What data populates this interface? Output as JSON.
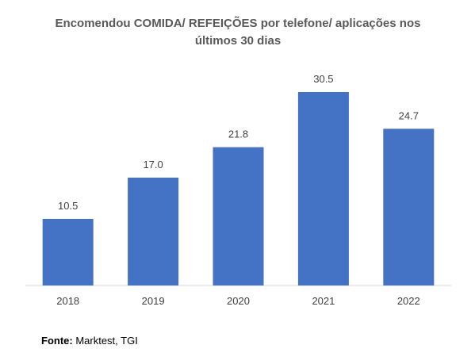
{
  "chart_data": {
    "type": "bar",
    "title_lines": [
      "Encomendou COMIDA/ REFEIÇÕES por telefone/ aplicações nos",
      "últimos 30 dias"
    ],
    "categories": [
      "2018",
      "2019",
      "2020",
      "2021",
      "2022"
    ],
    "values": [
      10.5,
      17.0,
      21.8,
      30.5,
      24.7
    ],
    "data_labels": [
      "10.5",
      "17.0",
      "21.8",
      "30.5",
      "24.7"
    ],
    "ylim": [
      0,
      30.5
    ],
    "grid": false,
    "legend": "none",
    "bar_color": "#4472C4"
  },
  "source": {
    "label": "Fonte:",
    "text": " Marktest, TGI"
  }
}
